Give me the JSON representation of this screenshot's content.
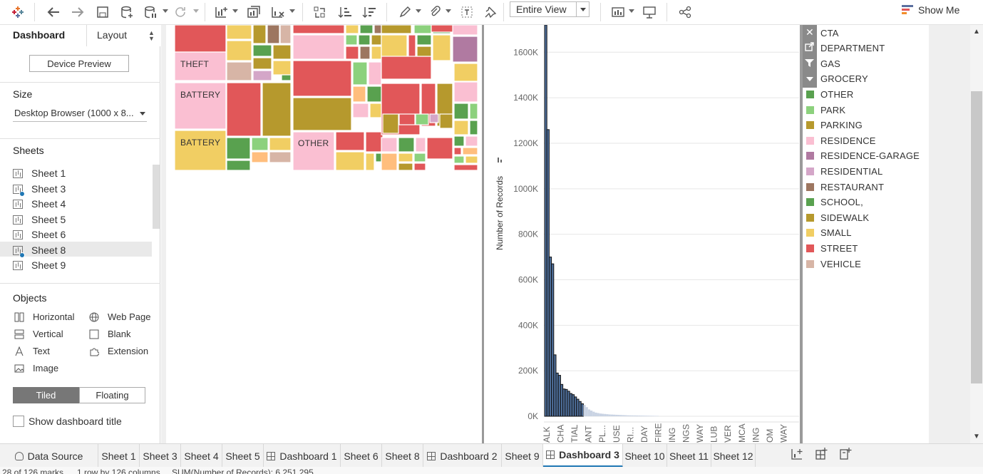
{
  "toolbar": {
    "view_select": "Entire View",
    "show_me": "Show Me"
  },
  "left_panel": {
    "tab_dashboard": "Dashboard",
    "tab_layout": "Layout",
    "device_preview": "Device Preview",
    "size_heading": "Size",
    "size_value": "Desktop Browser (1000 x 8...",
    "sheets_heading": "Sheets",
    "sheets": [
      {
        "label": "Sheet 1",
        "used": false
      },
      {
        "label": "Sheet 3",
        "used": true
      },
      {
        "label": "Sheet 4",
        "used": false
      },
      {
        "label": "Sheet 5",
        "used": false
      },
      {
        "label": "Sheet 6",
        "used": false
      },
      {
        "label": "Sheet 8",
        "used": true
      },
      {
        "label": "Sheet 9",
        "used": false
      }
    ],
    "objects_heading": "Objects",
    "objects": {
      "horizontal": "Horizontal",
      "web_page": "Web Page",
      "vertical": "Vertical",
      "blank": "Blank",
      "text": "Text",
      "extension": "Extension",
      "image": "Image"
    },
    "tiled": "Tiled",
    "floating": "Floating",
    "show_title": "Show dashboard title"
  },
  "treemap": {
    "labels": {
      "theft": "THEFT",
      "battery1": "BATTERY",
      "battery2": "BATTERY",
      "other": "OTHER"
    }
  },
  "chart_data": {
    "type": "bar",
    "ylabel": "Number of Records",
    "ylim": [
      0,
      1720000
    ],
    "yticks": [
      "0K",
      "200K",
      "400K",
      "600K",
      "800K",
      "1000K",
      "1200K",
      "1400K",
      "1600K"
    ],
    "ytick_values": [
      0,
      200000,
      400000,
      600000,
      800000,
      1000000,
      1200000,
      1400000,
      1600000
    ],
    "values": [
      1720000,
      1260000,
      700000,
      670000,
      270000,
      190000,
      180000,
      140000,
      120000,
      118000,
      110000,
      100000,
      95000,
      85000,
      75000,
      65000,
      55000,
      50000,
      40000,
      30000,
      25000,
      20000,
      16000,
      14000,
      12000,
      11000,
      10000,
      9000,
      8000,
      7500,
      7000,
      6500,
      6000,
      5500,
      5000,
      4500,
      4000,
      3800,
      3600,
      3400,
      3200,
      3000,
      2800,
      2600,
      2400,
      2200,
      2000,
      1800,
      1600,
      1400
    ],
    "highlighted_count": 17,
    "xtick_labels": [
      "ALK",
      "CHA",
      "TIAL",
      "ANT",
      "PL...",
      "USE",
      "RI...",
      "DAY",
      "FIRE",
      "ING",
      "NGS",
      "WAY",
      "LUB",
      "VER",
      "MCA",
      "ING",
      "OM",
      "WAY"
    ],
    "bar_color": "#4e6f9b",
    "faded_color": "#c9d3e3"
  },
  "legend": {
    "items": [
      {
        "label": "CTA",
        "color": "#7a6a5e"
      },
      {
        "label": "DEPARTMENT",
        "color": "#7a6a5e"
      },
      {
        "label": "GAS",
        "color": "#7a6a5e"
      },
      {
        "label": "GROCERY",
        "color": "#7a6a5e"
      },
      {
        "label": "OTHER",
        "color": "#59a14f"
      },
      {
        "label": "PARK",
        "color": "#8cd17d"
      },
      {
        "label": "PARKING",
        "color": "#b6992d"
      },
      {
        "label": "RESIDENCE",
        "color": "#fabfd2"
      },
      {
        "label": "RESIDENCE-GARAGE",
        "color": "#b07aa1"
      },
      {
        "label": "RESIDENTIAL",
        "color": "#d4a6c8"
      },
      {
        "label": "RESTAURANT",
        "color": "#9d7660"
      },
      {
        "label": "SCHOOL,",
        "color": "#59a14f"
      },
      {
        "label": "SIDEWALK",
        "color": "#b6992d"
      },
      {
        "label": "SMALL",
        "color": "#f1ce63"
      },
      {
        "label": "STREET",
        "color": "#e15759"
      },
      {
        "label": "VEHICLE",
        "color": "#d7b5a6"
      }
    ]
  },
  "sheet_tabs": [
    {
      "label": "Data Source",
      "kind": "datasource"
    },
    {
      "label": "Sheet 1",
      "kind": "sheet"
    },
    {
      "label": "Sheet 3",
      "kind": "sheet"
    },
    {
      "label": "Sheet 4",
      "kind": "sheet"
    },
    {
      "label": "Sheet 5",
      "kind": "sheet"
    },
    {
      "label": "Dashboard 1",
      "kind": "dashboard"
    },
    {
      "label": "Sheet 6",
      "kind": "sheet"
    },
    {
      "label": "Sheet 8",
      "kind": "sheet"
    },
    {
      "label": "Dashboard 2",
      "kind": "dashboard"
    },
    {
      "label": "Sheet 9",
      "kind": "sheet"
    },
    {
      "label": "Dashboard 3",
      "kind": "dashboard",
      "active": true
    },
    {
      "label": "Sheet 10",
      "kind": "sheet"
    },
    {
      "label": "Sheet 11",
      "kind": "sheet"
    },
    {
      "label": "Sheet 12",
      "kind": "sheet"
    }
  ],
  "status": {
    "marks": "28 of 126 marks",
    "rows": "1 row by 126 columns",
    "sum": "SUM(Number of Records): 6,251,295"
  },
  "colors": {
    "accent": "#1f77b4",
    "bar": "#4e6f9b",
    "theft": "#e15759",
    "battery": "#f1ce63"
  }
}
